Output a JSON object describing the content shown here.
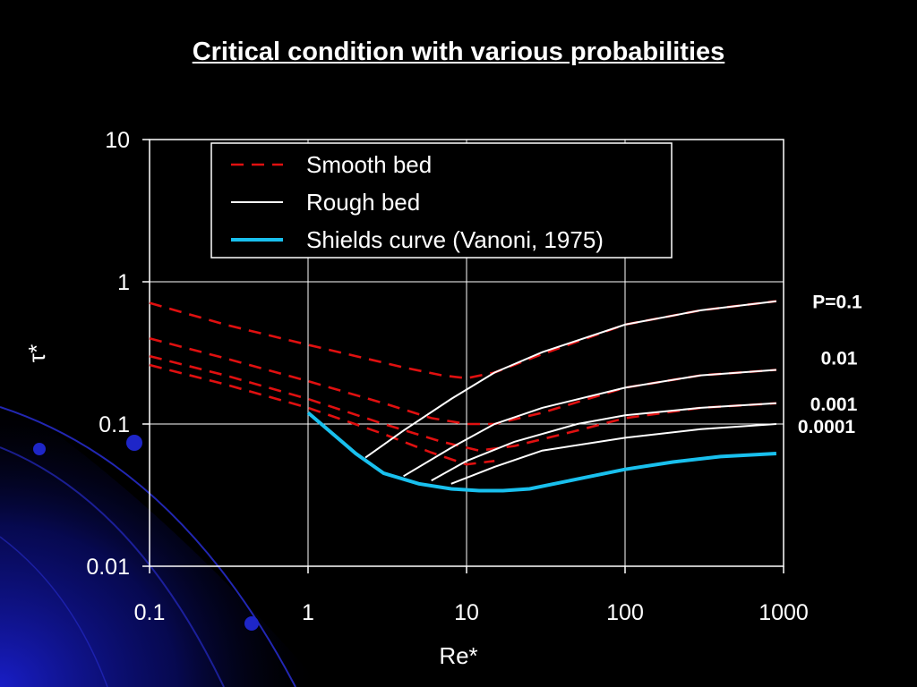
{
  "title": "Critical condition with various probabilities",
  "colors": {
    "background": "#000000",
    "smooth": "#e01010",
    "rough": "#ffffff",
    "shields": "#19c0ee",
    "decoration": "#1a1fd0"
  },
  "chart_data": {
    "type": "line",
    "xscale": "log",
    "yscale": "log",
    "xlim": [
      0.1,
      1000
    ],
    "ylim": [
      0.01,
      10
    ],
    "xticks": [
      "0.1",
      "1",
      "10",
      "100",
      "1000"
    ],
    "yticks": [
      "10",
      "1",
      "0.1",
      "0.01"
    ],
    "xlabel": "Re*",
    "ylabel": "τ*",
    "grid": true,
    "legend_position": "top",
    "legend": [
      {
        "label": "Smooth bed",
        "style": "dashed",
        "color": "#e01010"
      },
      {
        "label": "Rough bed",
        "style": "solid",
        "color": "#ffffff"
      },
      {
        "label": "Shields curve (Vanoni, 1975)",
        "style": "solid",
        "color": "#19c0ee"
      }
    ],
    "probability_labels": [
      "P=0.1",
      "0.01",
      "0.001",
      "0.0001"
    ],
    "series": [
      {
        "group": "Smooth bed",
        "probability": "P=0.1",
        "x": [
          0.1,
          0.3,
          1,
          2,
          4,
          7,
          10,
          15,
          30,
          100,
          300,
          900
        ],
        "y": [
          0.71,
          0.5,
          0.36,
          0.3,
          0.25,
          0.22,
          0.21,
          0.23,
          0.31,
          0.5,
          0.63,
          0.73
        ]
      },
      {
        "group": "Smooth bed",
        "probability": "0.01",
        "x": [
          0.1,
          0.3,
          1,
          3,
          6,
          10,
          15,
          30,
          100,
          300,
          900
        ],
        "y": [
          0.4,
          0.29,
          0.2,
          0.14,
          0.11,
          0.1,
          0.1,
          0.12,
          0.18,
          0.22,
          0.24
        ]
      },
      {
        "group": "Smooth bed",
        "probability": "0.001",
        "x": [
          0.1,
          0.3,
          1,
          3,
          7,
          12,
          20,
          50,
          100,
          300,
          900
        ],
        "y": [
          0.3,
          0.22,
          0.15,
          0.1,
          0.075,
          0.065,
          0.07,
          0.09,
          0.11,
          0.13,
          0.14
        ]
      },
      {
        "group": "Smooth bed",
        "probability": "0.0001",
        "x": [
          0.1,
          0.3,
          1,
          3,
          6,
          10,
          15
        ],
        "y": [
          0.26,
          0.19,
          0.13,
          0.085,
          0.063,
          0.052,
          0.055
        ]
      },
      {
        "group": "Rough bed",
        "probability": "P=0.1",
        "x": [
          2.3,
          4,
          8,
          15,
          30,
          100,
          300,
          900
        ],
        "y": [
          0.058,
          0.09,
          0.15,
          0.23,
          0.32,
          0.5,
          0.63,
          0.73
        ]
      },
      {
        "group": "Rough bed",
        "probability": "0.01",
        "x": [
          4,
          8,
          15,
          30,
          100,
          300,
          900
        ],
        "y": [
          0.043,
          0.068,
          0.1,
          0.13,
          0.18,
          0.22,
          0.24
        ]
      },
      {
        "group": "Rough bed",
        "probability": "0.001",
        "x": [
          6,
          10,
          20,
          50,
          100,
          300,
          900
        ],
        "y": [
          0.04,
          0.055,
          0.075,
          0.1,
          0.115,
          0.13,
          0.14
        ]
      },
      {
        "group": "Rough bed",
        "probability": "0.0001",
        "x": [
          8,
          15,
          30,
          100,
          300,
          900
        ],
        "y": [
          0.038,
          0.05,
          0.065,
          0.08,
          0.092,
          0.1
        ]
      },
      {
        "group": "Shields curve (Vanoni, 1975)",
        "x": [
          1,
          2,
          3,
          5,
          8,
          12,
          17,
          25,
          50,
          100,
          200,
          400,
          900
        ],
        "y": [
          0.12,
          0.062,
          0.045,
          0.038,
          0.035,
          0.034,
          0.034,
          0.035,
          0.041,
          0.048,
          0.054,
          0.059,
          0.062
        ]
      }
    ]
  }
}
